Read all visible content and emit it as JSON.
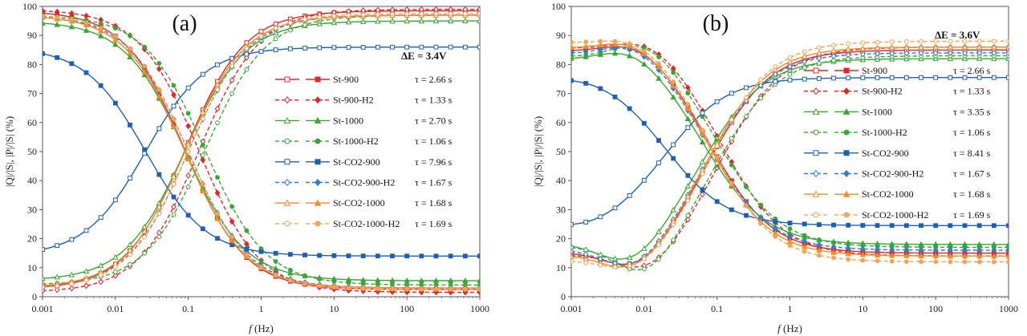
{
  "chart_data": [
    {
      "type": "line",
      "panel_label": "(a)",
      "annotation": "ΔE = 3.4V",
      "xlabel_italic": "f",
      "xlabel_rest": " (Hz)",
      "ylabel": "|Q|/|S|, |P|/|S| (%)",
      "x_scale": "log",
      "xlim": [
        0.001,
        1000
      ],
      "ylim": [
        0,
        100
      ],
      "x_ticks": [
        "0.001",
        "0.01",
        "0.1",
        "1",
        "10",
        "100",
        "1000"
      ],
      "y_ticks": [
        "0",
        "10",
        "20",
        "30",
        "40",
        "50",
        "60",
        "70",
        "80",
        "90",
        "100"
      ],
      "grid": false,
      "legend_position": "right",
      "series": [
        {
          "name": "St-900",
          "tau": "τ = 2.66 s",
          "color": "#e3262b",
          "dash": false,
          "marker": "square",
          "low": 2.5,
          "high": 98.5,
          "fc": 0.09
        },
        {
          "name": "St-900-H2",
          "tau": "τ = 1.33 s",
          "color": "#e3262b",
          "dash": true,
          "marker": "diamond",
          "low": 1.5,
          "high": 99.0,
          "fc": 0.14
        },
        {
          "name": "St-1000",
          "tau": "τ = 2.70 s",
          "color": "#3aa635",
          "dash": false,
          "marker": "triangle",
          "low": 5.5,
          "high": 95.0,
          "fc": 0.09
        },
        {
          "name": "St-1000-H2",
          "tau": "τ = 1.06 s",
          "color": "#3aa635",
          "dash": true,
          "marker": "circle",
          "low": 4.0,
          "high": 97.0,
          "fc": 0.17
        },
        {
          "name": "St-CO2-900",
          "tau": "τ = 7.96 s",
          "color": "#1f5fb4",
          "dash": false,
          "marker": "square",
          "low": 14.0,
          "high": 86.0,
          "fc": 0.026
        },
        {
          "name": "St-CO2-900-H2",
          "tau": "τ = 1.67 s",
          "color": "#2f7fd0",
          "dash": true,
          "marker": "diamond",
          "low": 3.0,
          "high": 97.0,
          "fc": 0.1
        },
        {
          "name": "St-CO2-1000",
          "tau": "τ = 1.68 s",
          "color": "#f28c28",
          "dash": false,
          "marker": "triangle",
          "low": 3.0,
          "high": 97.0,
          "fc": 0.09
        },
        {
          "name": "St-CO2-1000-H2",
          "tau": "τ = 1.69 s",
          "color": "#f5a35a",
          "dash": true,
          "marker": "circle",
          "low": 2.5,
          "high": 97.5,
          "fc": 0.1
        }
      ]
    },
    {
      "type": "line",
      "panel_label": "(b)",
      "annotation": "ΔE = 3.6V",
      "xlabel_italic": "f",
      "xlabel_rest": " (Hz)",
      "ylabel": "|Q|/|S|, |P|/|S| (%)",
      "x_scale": "log",
      "xlim": [
        0.001,
        1000
      ],
      "ylim": [
        0,
        100
      ],
      "x_ticks": [
        "0.001",
        "0.01",
        "0.1",
        "1",
        "10",
        "100",
        "1000"
      ],
      "y_ticks": [
        "0",
        "10",
        "20",
        "30",
        "40",
        "50",
        "60",
        "70",
        "80",
        "90",
        "100"
      ],
      "grid": false,
      "legend_position": "right",
      "series": [
        {
          "name": "St-900",
          "tau": "τ = 2.66 s",
          "color": "#e3262b",
          "dash": false,
          "marker": "square",
          "low": 15.0,
          "high": 85.0,
          "fc": 0.09,
          "dip": 8
        },
        {
          "name": "St-900-H2",
          "tau": "τ = 1.33 s",
          "color": "#e3262b",
          "dash": true,
          "marker": "diamond",
          "low": 14.0,
          "high": 86.0,
          "fc": 0.13,
          "dip": 8
        },
        {
          "name": "St-1000",
          "tau": "τ = 3.35 s",
          "color": "#3aa635",
          "dash": false,
          "marker": "triangle",
          "low": 18.0,
          "high": 82.0,
          "fc": 0.075,
          "dip": 9
        },
        {
          "name": "St-1000-H2",
          "tau": "τ = 1.06 s",
          "color": "#3aa635",
          "dash": true,
          "marker": "circle",
          "low": 17.0,
          "high": 83.0,
          "fc": 0.12,
          "dip": 12
        },
        {
          "name": "St-CO2-900",
          "tau": "τ = 8.41 s",
          "color": "#1f5fb4",
          "dash": false,
          "marker": "square",
          "low": 24.5,
          "high": 75.5,
          "fc": 0.021,
          "dip": 2
        },
        {
          "name": "St-CO2-900-H2",
          "tau": "τ = 1.67 s",
          "color": "#2f7fd0",
          "dash": true,
          "marker": "diamond",
          "low": 16.0,
          "high": 84.0,
          "fc": 0.085,
          "dip": 9
        },
        {
          "name": "St-CO2-1000",
          "tau": "τ = 1.68 s",
          "color": "#f28c28",
          "dash": false,
          "marker": "triangle",
          "low": 14.0,
          "high": 86.0,
          "fc": 0.085,
          "dip": 8
        },
        {
          "name": "St-CO2-1000-H2",
          "tau": "τ = 1.69 s",
          "color": "#f5a35a",
          "dash": true,
          "marker": "circle",
          "low": 12.0,
          "high": 88.0,
          "fc": 0.09,
          "dip": 6
        }
      ]
    }
  ]
}
